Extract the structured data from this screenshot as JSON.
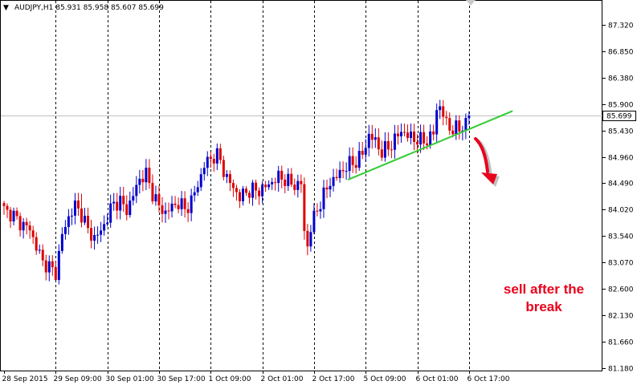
{
  "chart_data": {
    "type": "candlestick",
    "symbol_header": "AUDJPY,H1  85.931 85.958 85.607 85.699",
    "header_arrow": "▼",
    "current_price_label": "85.699",
    "current_price": 85.699,
    "ylim": [
      81.18,
      87.8
    ],
    "y_ticks": [
      "87.320",
      "86.850",
      "86.380",
      "85.900",
      "85.430",
      "84.960",
      "84.490",
      "84.020",
      "83.540",
      "83.070",
      "82.600",
      "82.130",
      "81.660",
      "81.180"
    ],
    "x_ticks": [
      "28 Sep 2015",
      "29 Sep 09:00",
      "30 Sep 01:00",
      "30 Sep 17:00",
      "1 Oct 09:00",
      "2 Oct 01:00",
      "2 Oct 17:00",
      "5 Oct 09:00",
      "6 Oct 01:00",
      "6 Oct 17:00"
    ],
    "x_range_hours": [
      0,
      166
    ],
    "x_tick_hours": [
      0,
      16,
      32,
      48,
      64,
      80,
      96,
      112,
      128,
      144
    ],
    "grid": "vertical dashed",
    "bull_color": "#0000cc",
    "bear_color": "#dd0000",
    "trendline_color": "#33cc33",
    "annotation_color": "#e8001c",
    "anchors": [
      [
        0,
        84.02
      ],
      [
        3,
        83.85
      ],
      [
        6,
        83.75
      ],
      [
        8,
        83.72
      ],
      [
        10,
        83.35
      ],
      [
        12,
        83.05
      ],
      [
        14,
        82.95
      ],
      [
        16,
        82.9
      ],
      [
        18,
        83.6
      ],
      [
        20,
        83.9
      ],
      [
        22,
        84.05
      ],
      [
        24,
        83.9
      ],
      [
        26,
        83.65
      ],
      [
        28,
        83.55
      ],
      [
        30,
        83.65
      ],
      [
        32,
        83.85
      ],
      [
        34,
        84.1
      ],
      [
        36,
        84.15
      ],
      [
        38,
        84.05
      ],
      [
        40,
        84.3
      ],
      [
        42,
        84.55
      ],
      [
        44,
        84.6
      ],
      [
        46,
        84.3
      ],
      [
        48,
        84.1
      ],
      [
        50,
        84.0
      ],
      [
        52,
        84.05
      ],
      [
        54,
        84.1
      ],
      [
        56,
        84.0
      ],
      [
        58,
        84.2
      ],
      [
        60,
        84.5
      ],
      [
        62,
        84.8
      ],
      [
        64,
        84.9
      ],
      [
        66,
        84.95
      ],
      [
        67,
        84.9
      ],
      [
        69,
        84.6
      ],
      [
        71,
        84.45
      ],
      [
        73,
        84.2
      ],
      [
        75,
        84.3
      ],
      [
        77,
        84.35
      ],
      [
        79,
        84.4
      ],
      [
        81,
        84.45
      ],
      [
        83,
        84.5
      ],
      [
        85,
        84.55
      ],
      [
        87,
        84.55
      ],
      [
        89,
        84.5
      ],
      [
        92,
        84.5
      ],
      [
        93,
        83.6
      ],
      [
        94,
        83.35
      ],
      [
        95,
        83.65
      ],
      [
        97,
        84.0
      ],
      [
        99,
        84.3
      ],
      [
        101,
        84.55
      ],
      [
        103,
        84.6
      ],
      [
        105,
        84.7
      ],
      [
        107,
        84.8
      ],
      [
        109,
        84.9
      ],
      [
        111,
        85.05
      ],
      [
        113,
        85.35
      ],
      [
        115,
        85.2
      ],
      [
        117,
        85.0
      ],
      [
        119,
        85.15
      ],
      [
        121,
        85.3
      ],
      [
        123,
        85.45
      ],
      [
        125,
        85.3
      ],
      [
        127,
        85.25
      ],
      [
        129,
        85.25
      ],
      [
        131,
        85.3
      ],
      [
        133,
        85.4
      ],
      [
        134,
        85.8
      ],
      [
        135,
        85.85
      ],
      [
        137,
        85.5
      ],
      [
        139,
        85.45
      ],
      [
        141,
        85.5
      ],
      [
        143,
        85.6
      ],
      [
        144,
        85.7
      ]
    ],
    "trendline": [
      [
        106.5,
        84.55
      ],
      [
        157.5,
        85.78
      ]
    ],
    "annotation_text_line1": "sell after the",
    "annotation_text_line2": "break"
  }
}
